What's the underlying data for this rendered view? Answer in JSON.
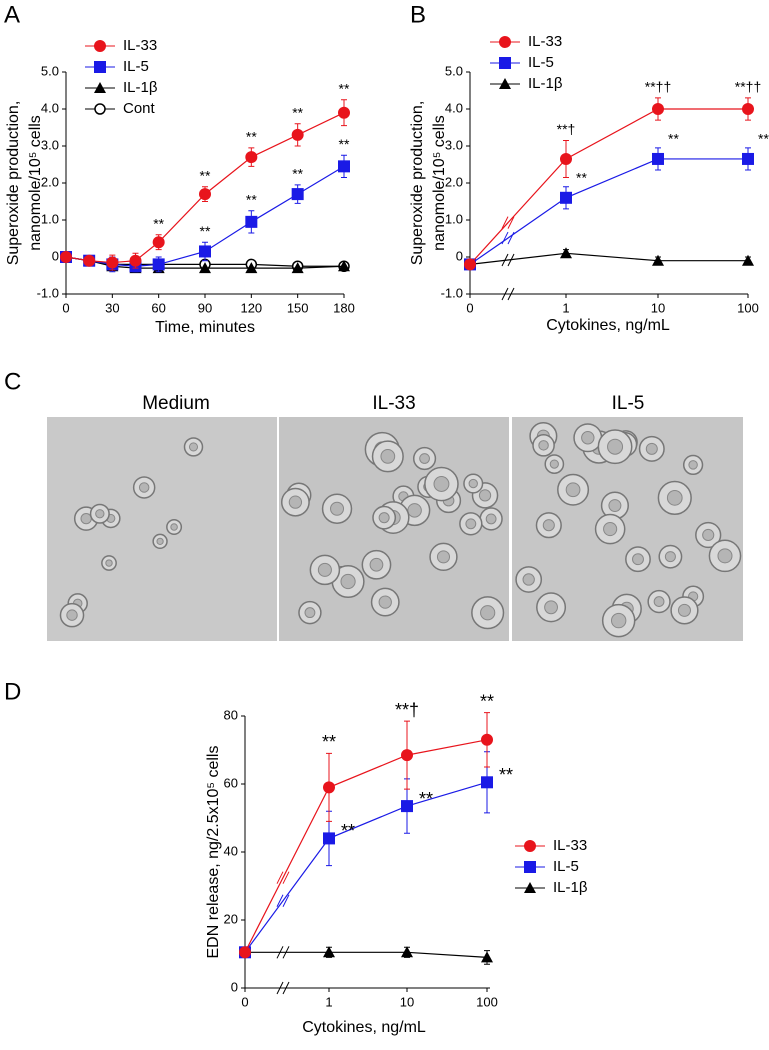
{
  "panel_labels": [
    "A",
    "B",
    "C",
    "D"
  ],
  "micrographs": {
    "titles": [
      "Medium",
      "IL-33",
      "IL-5"
    ]
  },
  "chart_data": [
    {
      "type": "line",
      "x": [
        0,
        15,
        30,
        45,
        60,
        90,
        120,
        150,
        180
      ],
      "xlim": [
        0,
        180
      ],
      "xticks": [
        0,
        30,
        60,
        90,
        120,
        150,
        180
      ],
      "ylim": [
        -1,
        5
      ],
      "yticks": [
        {
          "value": -1,
          "label": "-1.0"
        },
        0,
        {
          "value": 1,
          "label": "1.0"
        },
        {
          "value": 2,
          "label": "2.0"
        },
        {
          "value": 3,
          "label": "3.0"
        },
        {
          "value": 4,
          "label": "4.0"
        },
        {
          "value": 5,
          "label": "5.0"
        }
      ],
      "xlabel": "Time, minutes",
      "ylabel": [
        "Superoxide production,",
        "nanomole/10⁵ cells"
      ],
      "legend": "upper left",
      "series": [
        {
          "name": "IL-33",
          "color": "#e8141c",
          "marker": "circle",
          "values": [
            0,
            -0.1,
            -0.15,
            -0.1,
            0.4,
            1.7,
            2.7,
            3.3,
            3.9
          ],
          "errors": [
            0,
            0.1,
            0.2,
            0.2,
            0.2,
            0.2,
            0.25,
            0.3,
            0.35
          ],
          "significance": [
            null,
            null,
            null,
            null,
            "**",
            "**",
            "**",
            "**",
            "**"
          ]
        },
        {
          "name": "IL-5",
          "color": "#1a1ae6",
          "marker": "square",
          "values": [
            0,
            -0.1,
            -0.2,
            -0.25,
            -0.2,
            0.15,
            0.95,
            1.7,
            2.45
          ],
          "errors": [
            0,
            0.1,
            0.2,
            0.15,
            0.2,
            0.25,
            0.3,
            0.25,
            0.3
          ],
          "significance": [
            null,
            null,
            null,
            null,
            null,
            "**",
            "**",
            "**",
            "**"
          ]
        },
        {
          "name": "IL-1β",
          "color": "#000000",
          "marker": "triangle",
          "values": [
            0,
            -0.1,
            -0.25,
            -0.3,
            -0.3,
            -0.3,
            -0.3,
            -0.3,
            -0.25
          ]
        },
        {
          "name": "Cont",
          "color": "#000000",
          "marker": "open-circle",
          "values": [
            0,
            -0.1,
            -0.2,
            -0.2,
            -0.2,
            -0.2,
            -0.2,
            -0.25,
            -0.25
          ]
        }
      ]
    },
    {
      "type": "line",
      "categories": [
        "0",
        "1",
        "10",
        "100"
      ],
      "ylim": [
        -1,
        5
      ],
      "yticks": [
        {
          "value": -1,
          "label": "-1.0"
        },
        0,
        {
          "value": 1,
          "label": "1.0"
        },
        {
          "value": 2,
          "label": "2.0"
        },
        {
          "value": 3,
          "label": "3.0"
        },
        {
          "value": 4,
          "label": "4.0"
        },
        {
          "value": 5,
          "label": "5.0"
        }
      ],
      "xlabel": "Cytokines, ng/mL",
      "ylabel": [
        "Superoxide production,",
        "nanomole/10⁵ cells"
      ],
      "legend": "upper left",
      "series": [
        {
          "name": "IL-33",
          "color": "#e8141c",
          "marker": "circle",
          "values": [
            -0.2,
            2.65,
            4.0,
            4.0
          ],
          "errors": [
            0,
            0.5,
            0.3,
            0.3
          ],
          "significance": [
            null,
            "**†",
            "**††",
            "**††"
          ]
        },
        {
          "name": "IL-5",
          "color": "#1a1ae6",
          "marker": "square",
          "values": [
            -0.2,
            1.6,
            2.65,
            2.65
          ],
          "errors": [
            0,
            0.3,
            0.3,
            0.3
          ],
          "significance": [
            null,
            "**",
            "**",
            "**"
          ]
        },
        {
          "name": "IL-1β",
          "color": "#000000",
          "marker": "triangle",
          "values": [
            -0.2,
            0.1,
            -0.1,
            -0.1
          ],
          "errors": [
            0,
            0.1,
            0.1,
            0.1
          ]
        }
      ]
    },
    {
      "type": "line",
      "categories": [
        "0",
        "1",
        "10",
        "100"
      ],
      "ylim": [
        0,
        80
      ],
      "yticks": [
        0,
        20,
        40,
        60,
        80
      ],
      "xlabel": "Cytokines, ng/mL",
      "ylabel": "EDN release, ng/2.5x10⁵ cells",
      "legend": "right",
      "series": [
        {
          "name": "IL-33",
          "color": "#e8141c",
          "marker": "circle",
          "values": [
            10.5,
            59,
            68.5,
            73
          ],
          "errors": [
            0,
            10,
            10,
            8
          ],
          "significance": [
            null,
            "**",
            "**†",
            "**"
          ]
        },
        {
          "name": "IL-5",
          "color": "#1a1ae6",
          "marker": "square",
          "values": [
            10.5,
            44,
            53.5,
            60.5
          ],
          "errors": [
            0,
            8,
            8,
            9
          ],
          "significance": [
            null,
            "**",
            "**",
            "**"
          ]
        },
        {
          "name": "IL-1β",
          "color": "#000000",
          "marker": "triangle",
          "values": [
            10.5,
            10.5,
            10.5,
            9
          ],
          "errors": [
            0,
            1.5,
            1.5,
            2
          ]
        }
      ]
    }
  ]
}
